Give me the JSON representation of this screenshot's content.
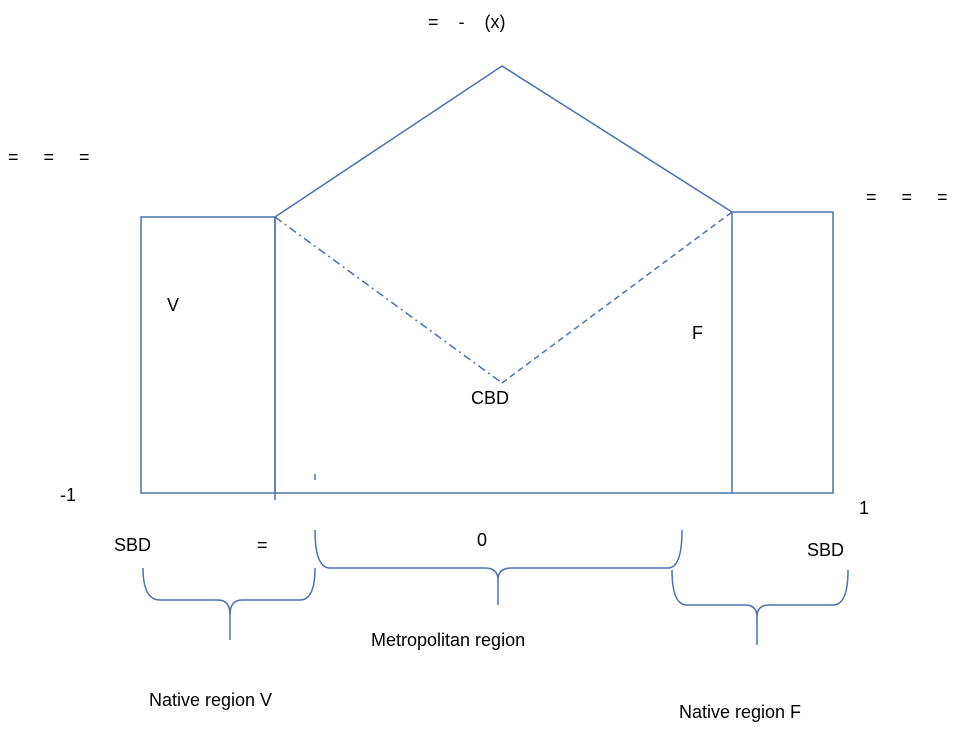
{
  "diagram": {
    "top_equation": "=    -    (x)",
    "left_equation": "=     =     =",
    "right_equation": "=     =     =",
    "region_v_label": "V",
    "region_f_label": "F",
    "center_label": "CBD",
    "left_end": "-1",
    "right_end": "1",
    "left_sbd": "SBD",
    "left_equals": "=",
    "center_zero": "0",
    "right_sbd": "SBD",
    "metropolitan": "Metropolitan region",
    "native_v": "Native region V",
    "native_f": "Native region F"
  }
}
